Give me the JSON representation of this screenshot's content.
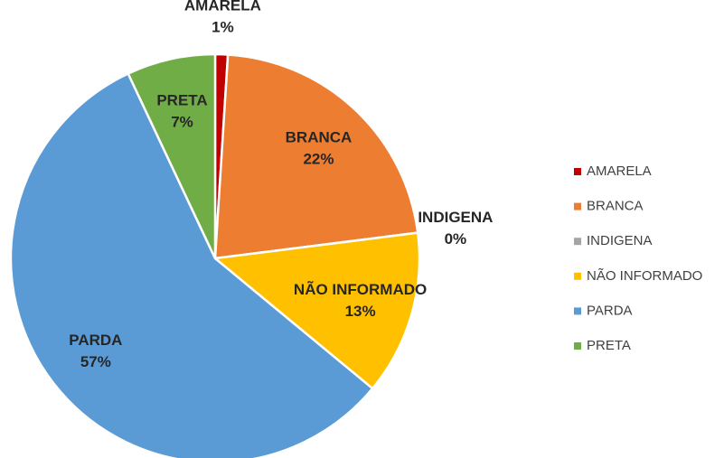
{
  "chart_data": {
    "type": "pie",
    "categories": [
      "AMARELA",
      "BRANCA",
      "INDIGENA",
      "NÃO INFORMADO",
      "PARDA",
      "PRETA"
    ],
    "values": [
      1,
      22,
      0,
      13,
      57,
      7
    ],
    "value_labels": [
      "1%",
      "22%",
      "0%",
      "13%",
      "57%",
      "7%"
    ],
    "colors": [
      "#c00000",
      "#ed7d31",
      "#a5a5a5",
      "#ffc000",
      "#5b9bd5",
      "#70ad47"
    ],
    "legend": "right"
  }
}
